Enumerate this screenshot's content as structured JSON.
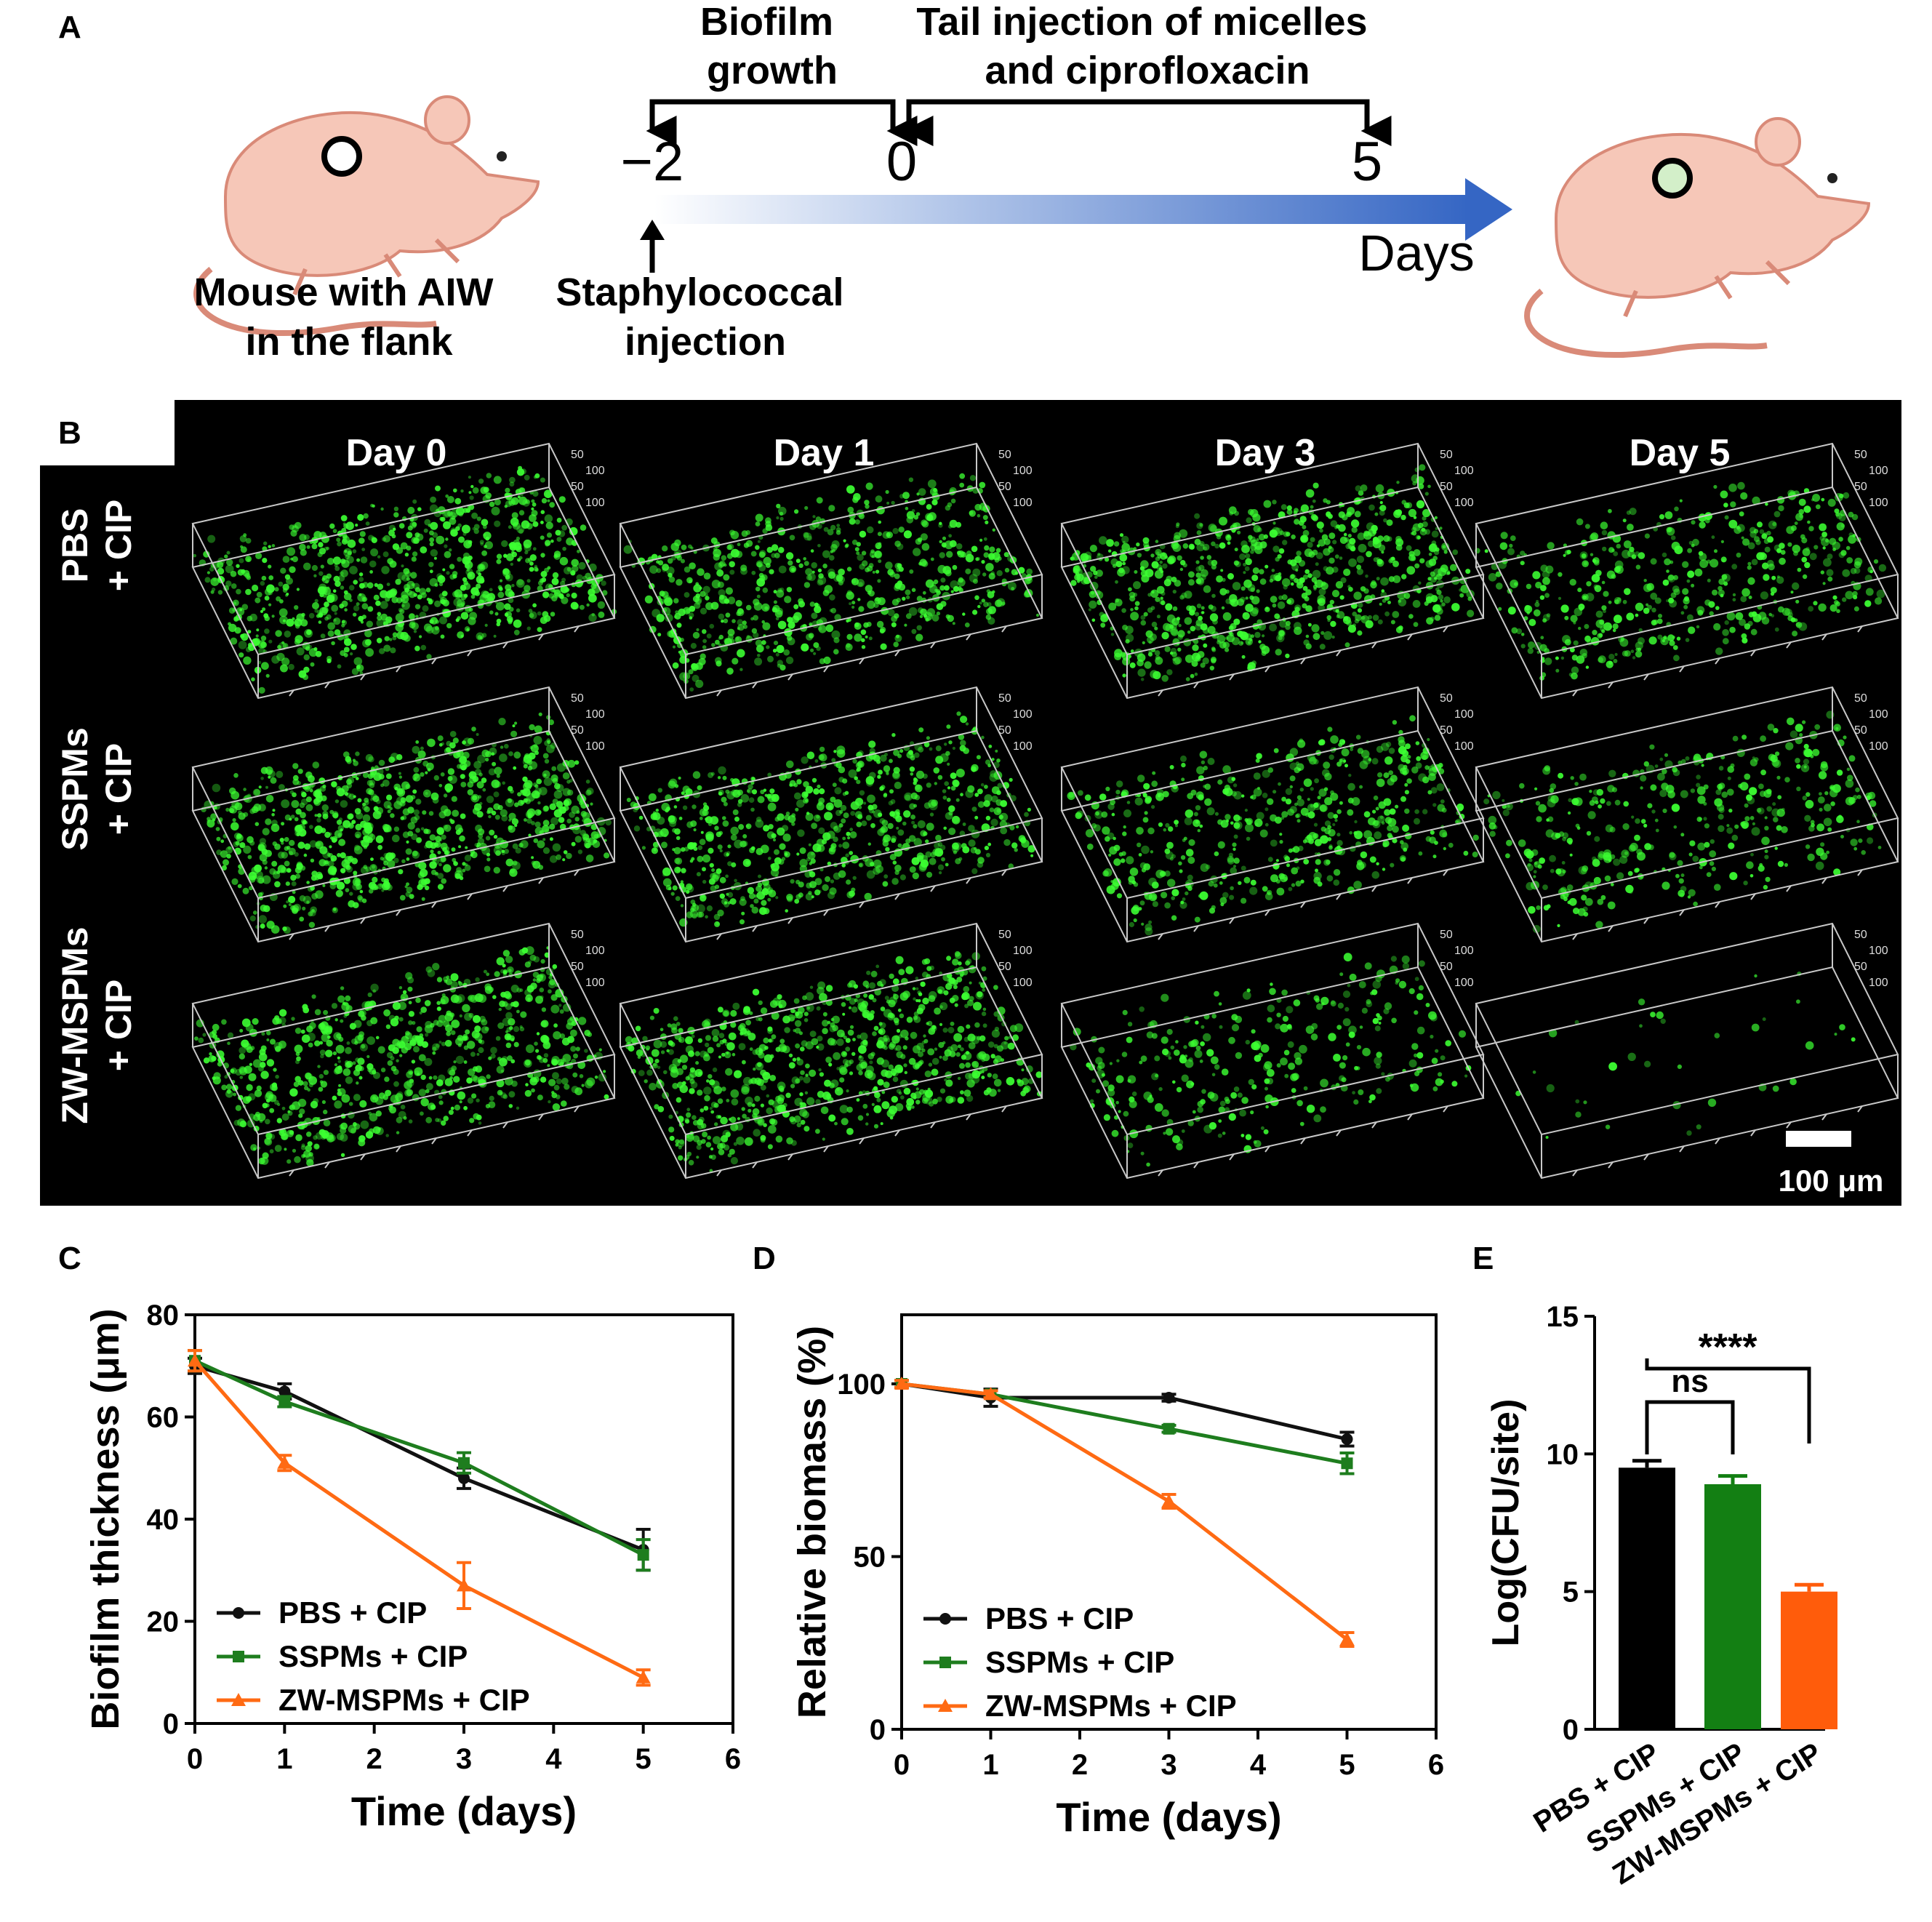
{
  "panelA": {
    "letter": "A",
    "mouse_label": [
      "Mouse with AIW",
      "in the flank"
    ],
    "biofilm_label": [
      "Biofilm",
      "growth"
    ],
    "tail_label": [
      "Tail injection of micelles",
      "and ciprofloxacin"
    ],
    "staph_label": [
      "Staphylococcal",
      "injection"
    ],
    "tick_minus2": "−2",
    "tick_0": "0",
    "tick_5": "5",
    "days_label": "Days",
    "colors": {
      "mouse_body": "#f6c7b8",
      "mouse_outline": "#d98a78",
      "arrow": "#3566c4",
      "wound_after": "#d3efc9"
    }
  },
  "panelB": {
    "letter": "B",
    "columns": [
      "Day 0",
      "Day 1",
      "Day 3",
      "Day 5"
    ],
    "rows": [
      {
        "line1": "PBS",
        "line2": "+ CIP"
      },
      {
        "line1": "SSPMs",
        "line2": "+ CIP"
      },
      {
        "line1": "ZW-MSPMs",
        "line2": "+ CIP"
      }
    ],
    "density": [
      [
        0.95,
        0.75,
        0.9,
        0.55
      ],
      [
        1.0,
        0.8,
        0.6,
        0.45
      ],
      [
        0.85,
        0.9,
        0.35,
        0.04
      ]
    ],
    "scale_bar": "100 μm",
    "axis_labels": [
      "50",
      "100",
      "50",
      "100"
    ],
    "colors": {
      "background": "#000000",
      "fluor": "#3cff32",
      "box": "#c8c8c8"
    }
  },
  "chart_data": [
    {
      "panel": "C",
      "type": "line",
      "xlabel": "Time (days)",
      "ylabel": "Biofilm thickness (μm)",
      "xlim": [
        0,
        6
      ],
      "ylim": [
        0,
        80
      ],
      "xticks": [
        "0",
        "1",
        "2",
        "3",
        "4",
        "5",
        "6"
      ],
      "yticks": [
        "0",
        "20",
        "40",
        "60",
        "80"
      ],
      "x": [
        0,
        1,
        3,
        5
      ],
      "series": [
        {
          "name": "PBS + CIP",
          "color": "#111111",
          "marker": "circle",
          "values": [
            70,
            65,
            48,
            34
          ],
          "errors": [
            1.5,
            1.5,
            2,
            4
          ]
        },
        {
          "name": "SSPMs + CIP",
          "color": "#1e7d1e",
          "marker": "square",
          "values": [
            71,
            63,
            51,
            33
          ],
          "errors": [
            2,
            1,
            2,
            3
          ]
        },
        {
          "name": "ZW-MSPMs + CIP",
          "color": "#ff6a13",
          "marker": "triangle",
          "values": [
            71,
            51,
            27,
            9
          ],
          "errors": [
            2,
            1.5,
            4.5,
            1.5
          ]
        }
      ],
      "legend": "bottom-left"
    },
    {
      "panel": "D",
      "type": "line",
      "xlabel": "Time (days)",
      "ylabel": "Relative biomass (%)",
      "xlim": [
        0,
        6
      ],
      "ylim": [
        0,
        120
      ],
      "xticks": [
        "0",
        "1",
        "2",
        "3",
        "4",
        "5",
        "6"
      ],
      "yticks": [
        "0",
        "50",
        "100"
      ],
      "x": [
        0,
        1,
        3,
        5
      ],
      "series": [
        {
          "name": "PBS + CIP",
          "color": "#111111",
          "marker": "circle",
          "values": [
            100,
            96,
            96,
            84
          ],
          "errors": [
            1,
            2.5,
            1,
            2
          ]
        },
        {
          "name": "SSPMs + CIP",
          "color": "#1e7d1e",
          "marker": "square",
          "values": [
            100,
            97,
            87,
            77
          ],
          "errors": [
            1,
            1,
            1,
            3
          ]
        },
        {
          "name": "ZW-MSPMs + CIP",
          "color": "#ff6a13",
          "marker": "triangle",
          "values": [
            100,
            97,
            66,
            26
          ],
          "errors": [
            1,
            1,
            2,
            2
          ]
        }
      ],
      "legend": "bottom-left"
    },
    {
      "panel": "E",
      "type": "bar",
      "ylabel": "Log(CFU/site)",
      "ylim": [
        0,
        15
      ],
      "yticks": [
        "0",
        "5",
        "10",
        "15"
      ],
      "categories": [
        "PBS + CIP",
        "SSPMs + CIP",
        "ZW-MSPMs + CIP"
      ],
      "values": [
        9.5,
        8.9,
        5.0
      ],
      "errors": [
        0.25,
        0.3,
        0.25
      ],
      "colors": [
        "#000000",
        "#137f13",
        "#ff5c0b"
      ],
      "annotations": [
        {
          "from": "PBS + CIP",
          "to": "SSPMs + CIP",
          "label": "ns"
        },
        {
          "from": "PBS + CIP",
          "to": "ZW-MSPMs + CIP",
          "label": "****"
        }
      ]
    }
  ]
}
